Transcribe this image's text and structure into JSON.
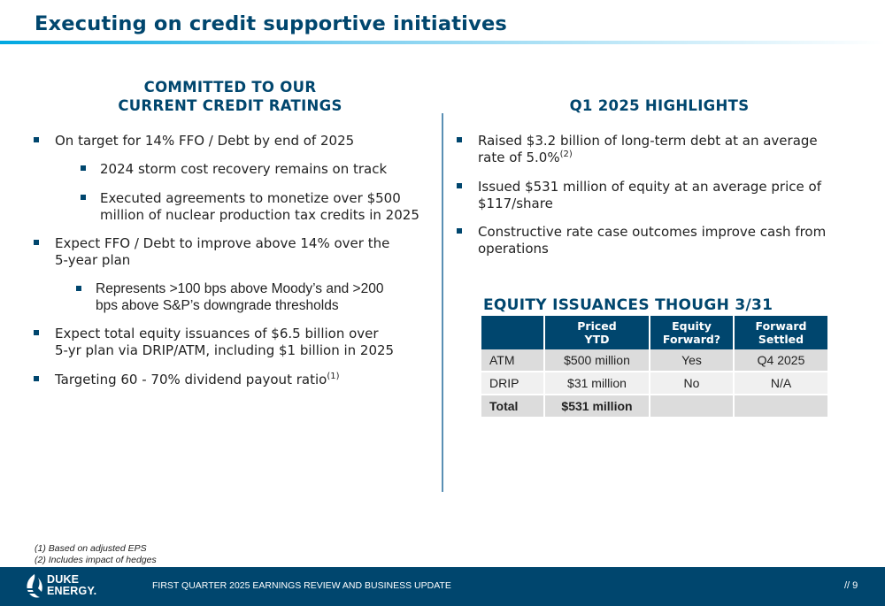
{
  "title": "Executing on credit supportive initiatives",
  "left": {
    "heading_line1": "COMMITTED TO OUR",
    "heading_line2": "CURRENT CREDIT RATINGS",
    "bullets": [
      {
        "text": "On target for 14% FFO / Debt by end of 2025"
      },
      {
        "text": "2024 storm cost recovery remains on track"
      },
      {
        "line1": "Executed agreements to monetize over $500",
        "line2": "million of nuclear production tax credits in 2025"
      },
      {
        "line1": "Expect FFO / Debt to improve above 14% over the",
        "line2": "5-year plan"
      },
      {
        "line1": "Represents >100 bps above Moody’s and >200",
        "line2": "bps above S&P’s downgrade thresholds"
      },
      {
        "line1": "Expect total equity issuances of $6.5 billion over",
        "line2": "5-yr plan via DRIP/ATM, including $1 billion in 2025"
      },
      {
        "text": "Targeting 60 - 70% dividend payout ratio",
        "sup": "(1)"
      }
    ]
  },
  "right": {
    "heading": "Q1 2025 HIGHLIGHTS",
    "bullets": [
      {
        "line1": "Raised $3.2 billion of long-term debt at an average",
        "line2": "rate of 5.0%",
        "sup": "(2)"
      },
      {
        "line1": "Issued $531 million of equity at an average price of",
        "line2": "$117/share"
      },
      {
        "line1": "Constructive rate case outcomes improve cash from",
        "line2": "operations"
      }
    ]
  },
  "table": {
    "heading": "EQUITY ISSUANCES THOUGH 3/31",
    "columns": [
      {
        "line1": "",
        "line2": ""
      },
      {
        "line1": "Priced",
        "line2": "YTD"
      },
      {
        "line1": "Equity",
        "line2": "Forward?"
      },
      {
        "line1": "Forward",
        "line2": "Settled"
      }
    ],
    "rows": [
      [
        "ATM",
        "$500 million",
        "Yes",
        "Q4 2025"
      ],
      [
        "DRIP",
        "$31 million",
        "No",
        "N/A"
      ],
      [
        "Total",
        "$531 million",
        "",
        ""
      ]
    ]
  },
  "footnotes": [
    "(1)  Based on adjusted EPS",
    "(2)  Includes impact of hedges"
  ],
  "footer": {
    "logo_line1": "DUKE",
    "logo_line2": "ENERGY.",
    "text": "FIRST QUARTER 2025 EARNINGS REVIEW AND BUSINESS UPDATE",
    "page": "//  9"
  },
  "colors": {
    "brand_navy": "#00466e",
    "accent_blue": "#00a8e1"
  }
}
